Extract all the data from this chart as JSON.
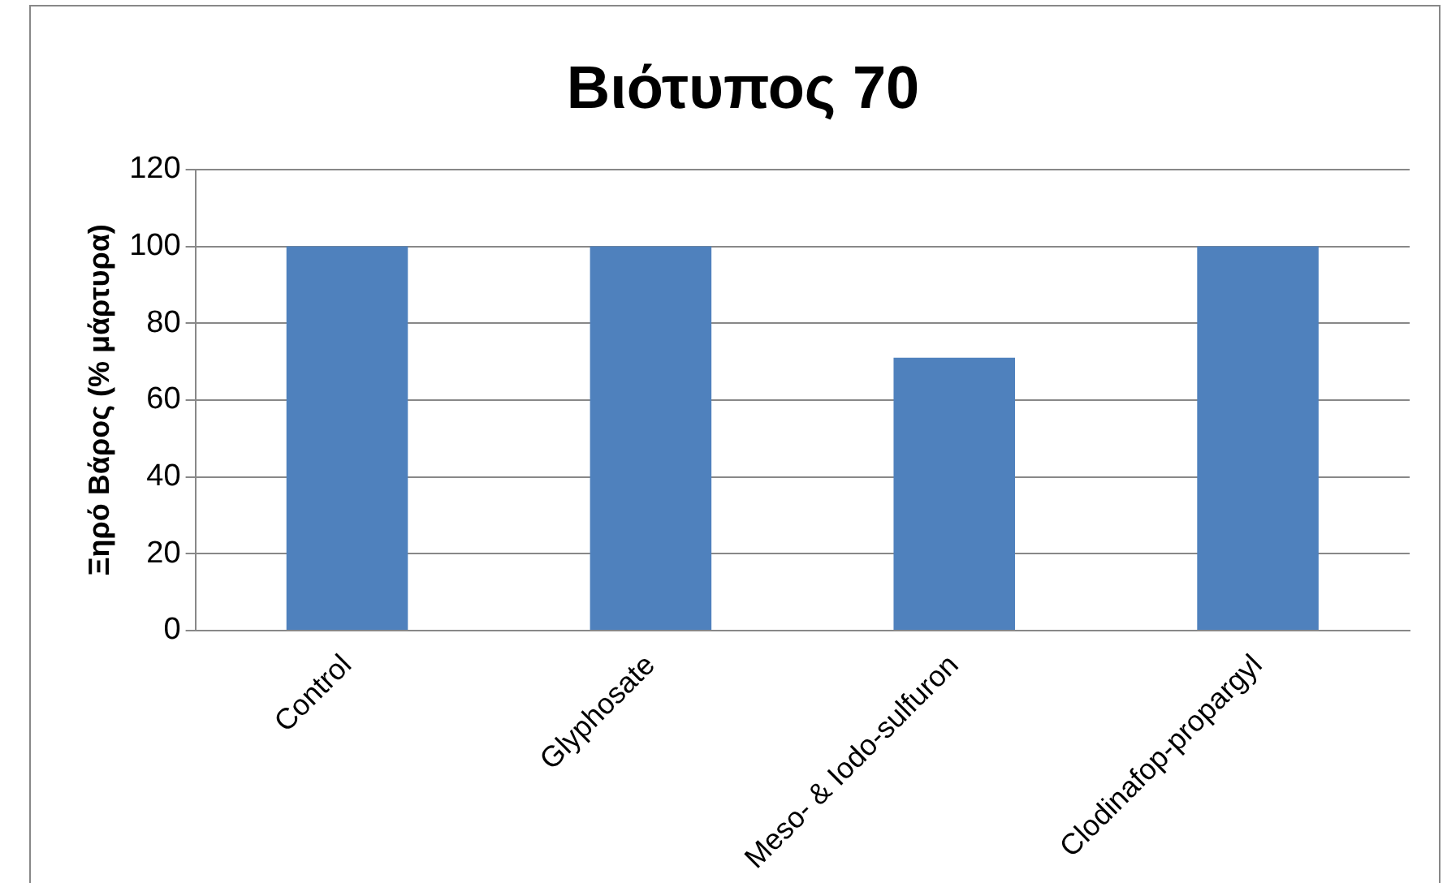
{
  "chart_data": {
    "type": "bar",
    "title": "Βιότυπος 70",
    "ylabel": "Ξηρό Βάρος (% μάρτυρα)",
    "categories": [
      "Control",
      "Glyphosate",
      "Meso- & Iodo-sulfuron",
      "Clodinafop-propargyl"
    ],
    "values": [
      100,
      100,
      71,
      100
    ],
    "color": "#4f81bd",
    "ylim": [
      0,
      120
    ],
    "yticks": [
      0,
      20,
      40,
      60,
      80,
      100,
      120
    ],
    "grid": "y"
  }
}
